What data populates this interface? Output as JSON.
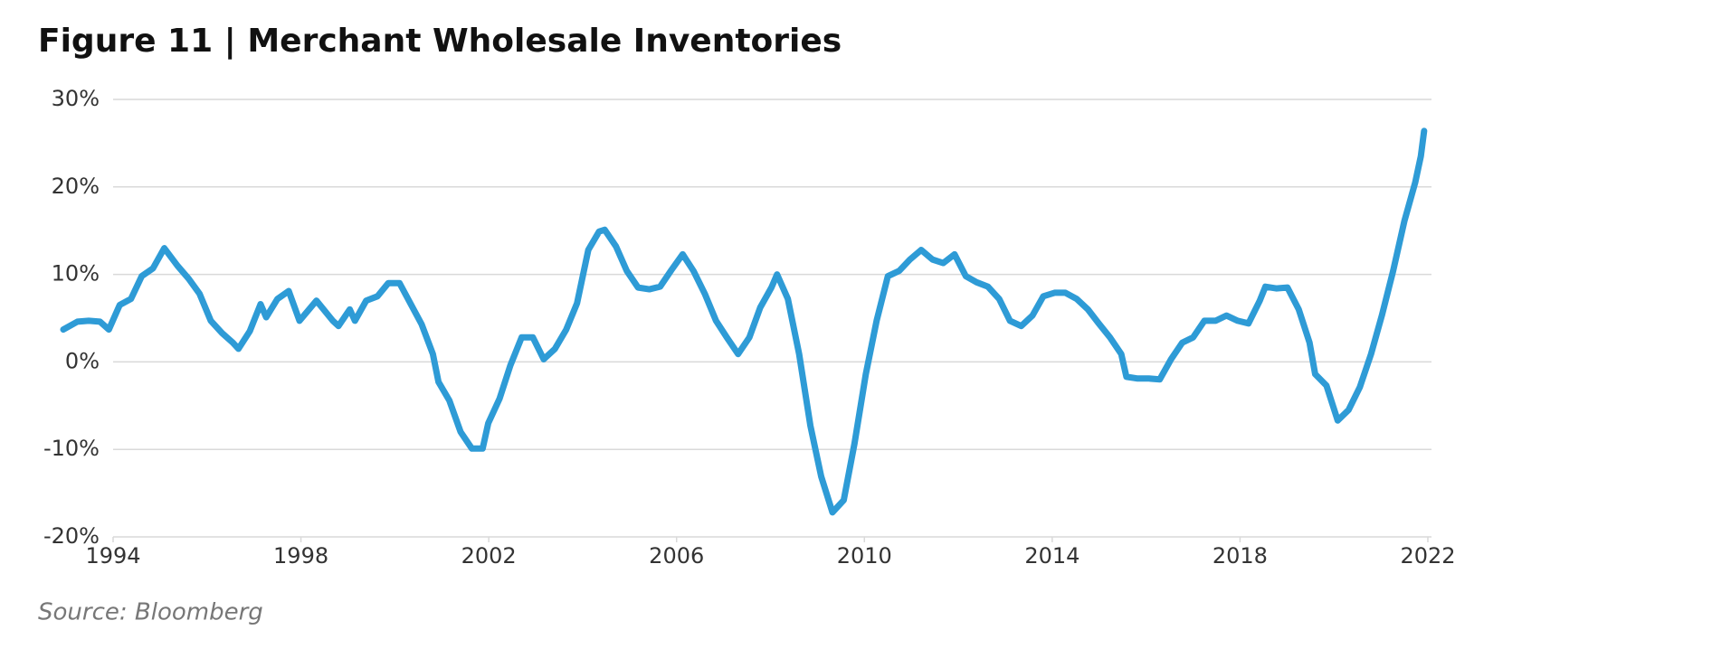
{
  "chart_data": {
    "type": "line",
    "title": "Figure 11  |  Merchant Wholesale Inventories",
    "source": "Source: Bloomberg",
    "x": [
      1992.94,
      1993.24,
      1993.48,
      1993.72,
      1993.91,
      1994.14,
      1994.38,
      1994.61,
      1994.85,
      1995.09,
      1995.37,
      1995.61,
      1995.84,
      1996.08,
      1996.32,
      1996.55,
      1996.67,
      1996.91,
      1997.14,
      1997.26,
      1997.5,
      1997.74,
      1997.97,
      1998.33,
      1998.68,
      1998.8,
      1999.04,
      1999.15,
      1999.39,
      1999.63,
      1999.86,
      2000.1,
      2000.34,
      2000.57,
      2000.81,
      2000.93,
      2001.16,
      2001.4,
      2001.64,
      2001.87,
      2001.99,
      2002.23,
      2002.46,
      2002.7,
      2002.94,
      2003.17,
      2003.41,
      2003.65,
      2003.88,
      2004.12,
      2004.35,
      2004.47,
      2004.71,
      2004.94,
      2005.18,
      2005.42,
      2005.65,
      2005.89,
      2006.13,
      2006.36,
      2006.6,
      2006.84,
      2007.07,
      2007.31,
      2007.55,
      2007.78,
      2008.02,
      2008.14,
      2008.37,
      2008.61,
      2008.85,
      2009.08,
      2009.32,
      2009.56,
      2009.79,
      2010.03,
      2010.26,
      2010.5,
      2010.74,
      2010.97,
      2011.21,
      2011.45,
      2011.68,
      2011.92,
      2012.16,
      2012.39,
      2012.63,
      2012.87,
      2013.1,
      2013.34,
      2013.58,
      2013.81,
      2014.05,
      2014.28,
      2014.52,
      2014.76,
      2014.99,
      2015.23,
      2015.47,
      2015.58,
      2015.82,
      2016.06,
      2016.29,
      2016.53,
      2016.77,
      2017.0,
      2017.24,
      2017.48,
      2017.71,
      2017.95,
      2018.18,
      2018.42,
      2018.54,
      2018.77,
      2019.01,
      2019.25,
      2019.48,
      2019.6,
      2019.84,
      2020.08,
      2020.31,
      2020.55,
      2020.79,
      2021.02,
      2021.26,
      2021.5,
      2021.73,
      2021.85,
      2021.92
    ],
    "series": [
      {
        "name": "Merchant Wholesale Inventories",
        "color": "#2e9bd6",
        "values": [
          3.7,
          4.6,
          4.7,
          4.6,
          3.7,
          6.5,
          7.2,
          9.8,
          10.7,
          13.0,
          11.0,
          9.5,
          7.8,
          4.7,
          3.3,
          2.2,
          1.5,
          3.5,
          6.6,
          5.1,
          7.2,
          8.1,
          4.7,
          7.0,
          4.7,
          4.1,
          6.0,
          4.7,
          7.0,
          7.5,
          9.0,
          9.0,
          6.6,
          4.3,
          0.9,
          -2.3,
          -4.4,
          -8.0,
          -9.9,
          -9.9,
          -7.0,
          -4.2,
          -0.4,
          2.8,
          2.8,
          0.3,
          1.5,
          3.7,
          6.7,
          12.8,
          14.9,
          15.1,
          13.2,
          10.4,
          8.5,
          8.3,
          8.6,
          10.5,
          12.3,
          10.4,
          7.8,
          4.7,
          2.8,
          0.9,
          2.8,
          6.2,
          8.5,
          10.0,
          7.2,
          0.9,
          -7.3,
          -13.1,
          -17.2,
          -15.8,
          -9.3,
          -1.4,
          4.7,
          9.8,
          10.4,
          11.7,
          12.8,
          11.7,
          11.3,
          12.3,
          9.8,
          9.1,
          8.6,
          7.2,
          4.7,
          4.1,
          5.3,
          7.5,
          7.9,
          7.9,
          7.2,
          6.0,
          4.4,
          2.8,
          0.9,
          -1.7,
          -1.9,
          -1.9,
          -2.0,
          0.3,
          2.2,
          2.8,
          4.7,
          4.7,
          5.3,
          4.7,
          4.4,
          7.0,
          8.6,
          8.4,
          8.5,
          6.0,
          2.2,
          -1.4,
          -2.7,
          -6.7,
          -5.5,
          -2.9,
          0.9,
          5.3,
          10.4,
          16.1,
          20.5,
          23.5,
          26.4
        ]
      }
    ],
    "xlim": [
      1994,
      2022
    ],
    "xticks": [
      1994,
      1998,
      2002,
      2006,
      2010,
      2014,
      2018,
      2022
    ],
    "ylim": [
      -20,
      30
    ],
    "yticks": [
      {
        "value": -20,
        "label": "-20%"
      },
      {
        "value": -10,
        "label": "-10%"
      },
      {
        "value": 0,
        "label": "0%"
      },
      {
        "value": 10,
        "label": "10%"
      },
      {
        "value": 20,
        "label": "20%"
      },
      {
        "value": 30,
        "label": "30%"
      }
    ],
    "grid": true
  }
}
